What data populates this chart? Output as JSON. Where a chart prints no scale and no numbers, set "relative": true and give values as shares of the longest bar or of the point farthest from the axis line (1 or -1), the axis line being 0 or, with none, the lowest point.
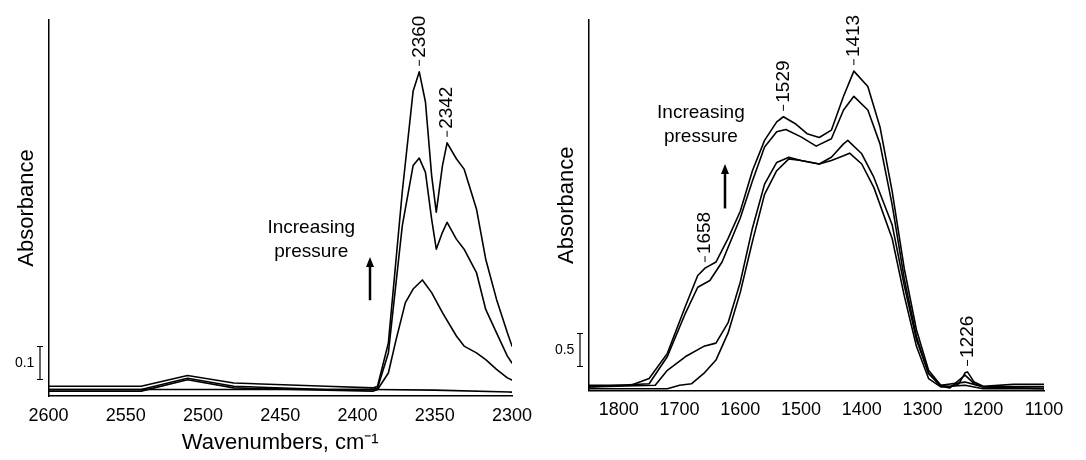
{
  "chart_data": [
    {
      "type": "line",
      "relative": true,
      "ylabel": "Absorbance",
      "xlabel": "Wavenumbers, cm⁻¹",
      "xlim": [
        2600,
        2300
      ],
      "xticks": [
        2600,
        2550,
        2500,
        2450,
        2400,
        2350,
        2300
      ],
      "grid": false,
      "legend": false,
      "marker": "none",
      "line_style": "solid",
      "annotations": [
        "Increasing pressure",
        "0.1",
        {
          "text": "2360",
          "x": 2360,
          "y": 1.0
        },
        {
          "text": "2342",
          "x": 2342,
          "y": 0.781
        }
      ],
      "series": [
        {
          "color": "#000000",
          "x": [
            2600,
            2540,
            2510,
            2480,
            2420,
            2390,
            2387,
            2380,
            2371,
            2364,
            2360,
            2356,
            2352,
            2349,
            2345,
            2342,
            2336,
            2331,
            2323,
            2317,
            2310,
            2303,
            2300
          ],
          "values": [
            0.03,
            0.03,
            0.063,
            0.04,
            0.03,
            0.025,
            0.03,
            0.164,
            0.63,
            0.94,
            1.0,
            0.907,
            0.68,
            0.567,
            0.711,
            0.781,
            0.732,
            0.7,
            0.577,
            0.422,
            0.298,
            0.195,
            0.154
          ]
        },
        {
          "color": "#000000",
          "x": [
            2600,
            2540,
            2510,
            2480,
            2420,
            2390,
            2387,
            2380,
            2371,
            2364,
            2360,
            2356,
            2352,
            2349,
            2345,
            2342,
            2336,
            2331,
            2323,
            2317,
            2310,
            2303,
            2300
          ],
          "values": [
            0.02,
            0.02,
            0.055,
            0.03,
            0.02,
            0.02,
            0.025,
            0.133,
            0.525,
            0.711,
            0.734,
            0.69,
            0.546,
            0.453,
            0.505,
            0.536,
            0.484,
            0.453,
            0.381,
            0.267,
            0.195,
            0.123,
            0.102
          ]
        },
        {
          "color": "#000000",
          "x": [
            2600,
            2540,
            2510,
            2480,
            2420,
            2390,
            2387,
            2380,
            2375,
            2369,
            2364,
            2358,
            2352,
            2345,
            2336,
            2331,
            2323,
            2317,
            2310,
            2303,
            2300
          ],
          "values": [
            0.015,
            0.015,
            0.05,
            0.025,
            0.018,
            0.015,
            0.02,
            0.071,
            0.174,
            0.288,
            0.33,
            0.358,
            0.319,
            0.257,
            0.185,
            0.154,
            0.133,
            0.112,
            0.082,
            0.056,
            0.049
          ]
        },
        {
          "color": "#000000",
          "x": [
            2600,
            2540,
            2510,
            2480,
            2420,
            2390,
            2350,
            2300
          ],
          "values": [
            0.02,
            0.02,
            0.02,
            0.02,
            0.02,
            0.02,
            0.018,
            0.012
          ]
        }
      ]
    },
    {
      "type": "line",
      "relative": true,
      "ylabel": "Absorbance",
      "xlim": [
        1850,
        1100
      ],
      "xticks": [
        1800,
        1700,
        1600,
        1500,
        1400,
        1300,
        1200,
        1100
      ],
      "grid": false,
      "legend": false,
      "marker": "none",
      "line_style": "solid",
      "annotations": [
        "Increasing pressure",
        "0.5",
        {
          "text": "1658",
          "x": 1658,
          "y": 0.383
        },
        {
          "text": "1529",
          "x": 1529,
          "y": 0.857
        },
        {
          "text": "1413",
          "x": 1413,
          "y": 1.0
        },
        {
          "text": "1226",
          "x": 1226,
          "y": 0.058
        }
      ],
      "series": [
        {
          "color": "#000000",
          "x": [
            1850,
            1780,
            1750,
            1720,
            1690,
            1670,
            1658,
            1640,
            1620,
            1600,
            1580,
            1560,
            1540,
            1529,
            1510,
            1490,
            1470,
            1450,
            1430,
            1413,
            1390,
            1370,
            1350,
            1330,
            1310,
            1290,
            1270,
            1255,
            1240,
            1230,
            1226,
            1215,
            1200,
            1150,
            1100
          ],
          "values": [
            0.016,
            0.016,
            0.037,
            0.116,
            0.265,
            0.36,
            0.383,
            0.402,
            0.476,
            0.561,
            0.688,
            0.783,
            0.841,
            0.857,
            0.836,
            0.804,
            0.792,
            0.815,
            0.921,
            1.0,
            0.952,
            0.825,
            0.624,
            0.381,
            0.19,
            0.063,
            0.016,
            0.011,
            0.021,
            0.055,
            0.058,
            0.026,
            0.013,
            0.019,
            0.019
          ]
        },
        {
          "color": "#000000",
          "x": [
            1850,
            1750,
            1720,
            1690,
            1670,
            1650,
            1630,
            1600,
            1580,
            1560,
            1540,
            1525,
            1500,
            1475,
            1450,
            1430,
            1413,
            1390,
            1370,
            1350,
            1330,
            1310,
            1290,
            1270,
            1255,
            1230,
            1215,
            1200,
            1100
          ],
          "values": [
            0.011,
            0.021,
            0.106,
            0.243,
            0.323,
            0.344,
            0.402,
            0.54,
            0.656,
            0.762,
            0.81,
            0.817,
            0.794,
            0.765,
            0.788,
            0.878,
            0.921,
            0.878,
            0.772,
            0.582,
            0.349,
            0.169,
            0.053,
            0.013,
            0.008,
            0.048,
            0.021,
            0.011,
            0.011
          ]
        },
        {
          "color": "#000000",
          "x": [
            1850,
            1740,
            1720,
            1690,
            1660,
            1640,
            1620,
            1600,
            1580,
            1560,
            1540,
            1520,
            1500,
            1470,
            1450,
            1430,
            1423,
            1400,
            1380,
            1350,
            1330,
            1310,
            1290,
            1270,
            1230,
            1200,
            1100
          ],
          "values": [
            0.011,
            0.016,
            0.063,
            0.106,
            0.138,
            0.148,
            0.212,
            0.339,
            0.508,
            0.646,
            0.714,
            0.73,
            0.72,
            0.709,
            0.73,
            0.772,
            0.783,
            0.741,
            0.667,
            0.519,
            0.328,
            0.159,
            0.053,
            0.016,
            0.026,
            0.011,
            0.005
          ]
        },
        {
          "color": "#000000",
          "x": [
            1850,
            1720,
            1700,
            1680,
            1660,
            1640,
            1620,
            1600,
            1580,
            1560,
            1540,
            1520,
            1500,
            1470,
            1450,
            1430,
            1420,
            1400,
            1380,
            1350,
            1330,
            1310,
            1290,
            1270,
            1230,
            1200,
            1100
          ],
          "values": [
            0.005,
            0.005,
            0.016,
            0.021,
            0.053,
            0.095,
            0.18,
            0.307,
            0.466,
            0.614,
            0.688,
            0.725,
            0.72,
            0.709,
            0.72,
            0.735,
            0.743,
            0.709,
            0.635,
            0.476,
            0.296,
            0.138,
            0.037,
            0.011,
            0.016,
            0.005,
            0.005
          ]
        }
      ]
    }
  ]
}
